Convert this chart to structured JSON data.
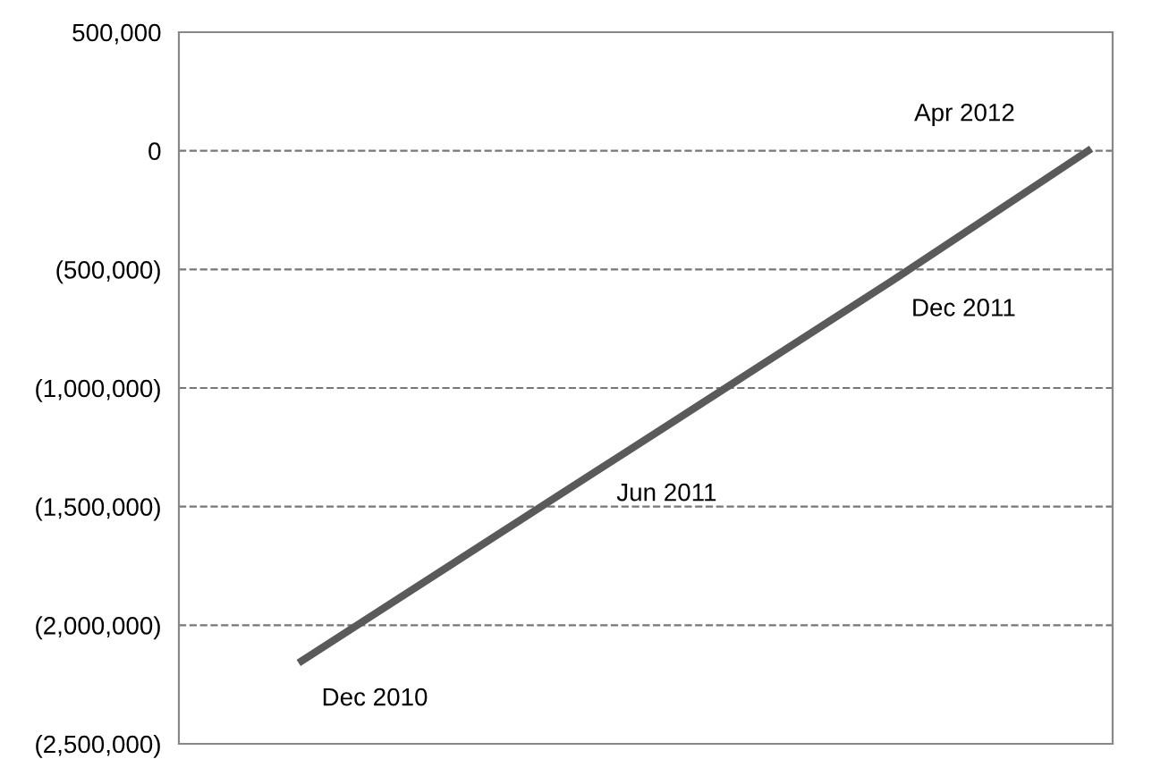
{
  "chart_data": {
    "type": "line",
    "categories": [
      null,
      null,
      null,
      null,
      null,
      null,
      null,
      null,
      null,
      null,
      null,
      null,
      null,
      null,
      null,
      null,
      null,
      null,
      null
    ],
    "series": [
      {
        "color": "#5a5a5a",
        "values": [
          null,
          null,
          -2150000,
          null,
          null,
          null,
          null,
          null,
          -1350000,
          null,
          null,
          null,
          null,
          null,
          -550000,
          null,
          null,
          null,
          0
        ]
      }
    ],
    "ylim": [
      -2500000,
      500000
    ],
    "yticks": [
      {
        "value": 500000,
        "label": "500,000"
      },
      {
        "value": 0,
        "label": "0"
      },
      {
        "value": -500000,
        "label": "(500,000)"
      },
      {
        "value": -1000000,
        "label": "(1,000,000)"
      },
      {
        "value": -1500000,
        "label": "(1,500,000)"
      },
      {
        "value": -2000000,
        "label": "(2,000,000)"
      },
      {
        "value": -2500000,
        "label": "(2,500,000)"
      }
    ],
    "tick_labels": "y",
    "grid": "y",
    "marker": "none",
    "line_style": "solid",
    "annotations": [
      "Dec 2010",
      "Jun 2011",
      "Dec 2011",
      "Apr 2012"
    ]
  }
}
